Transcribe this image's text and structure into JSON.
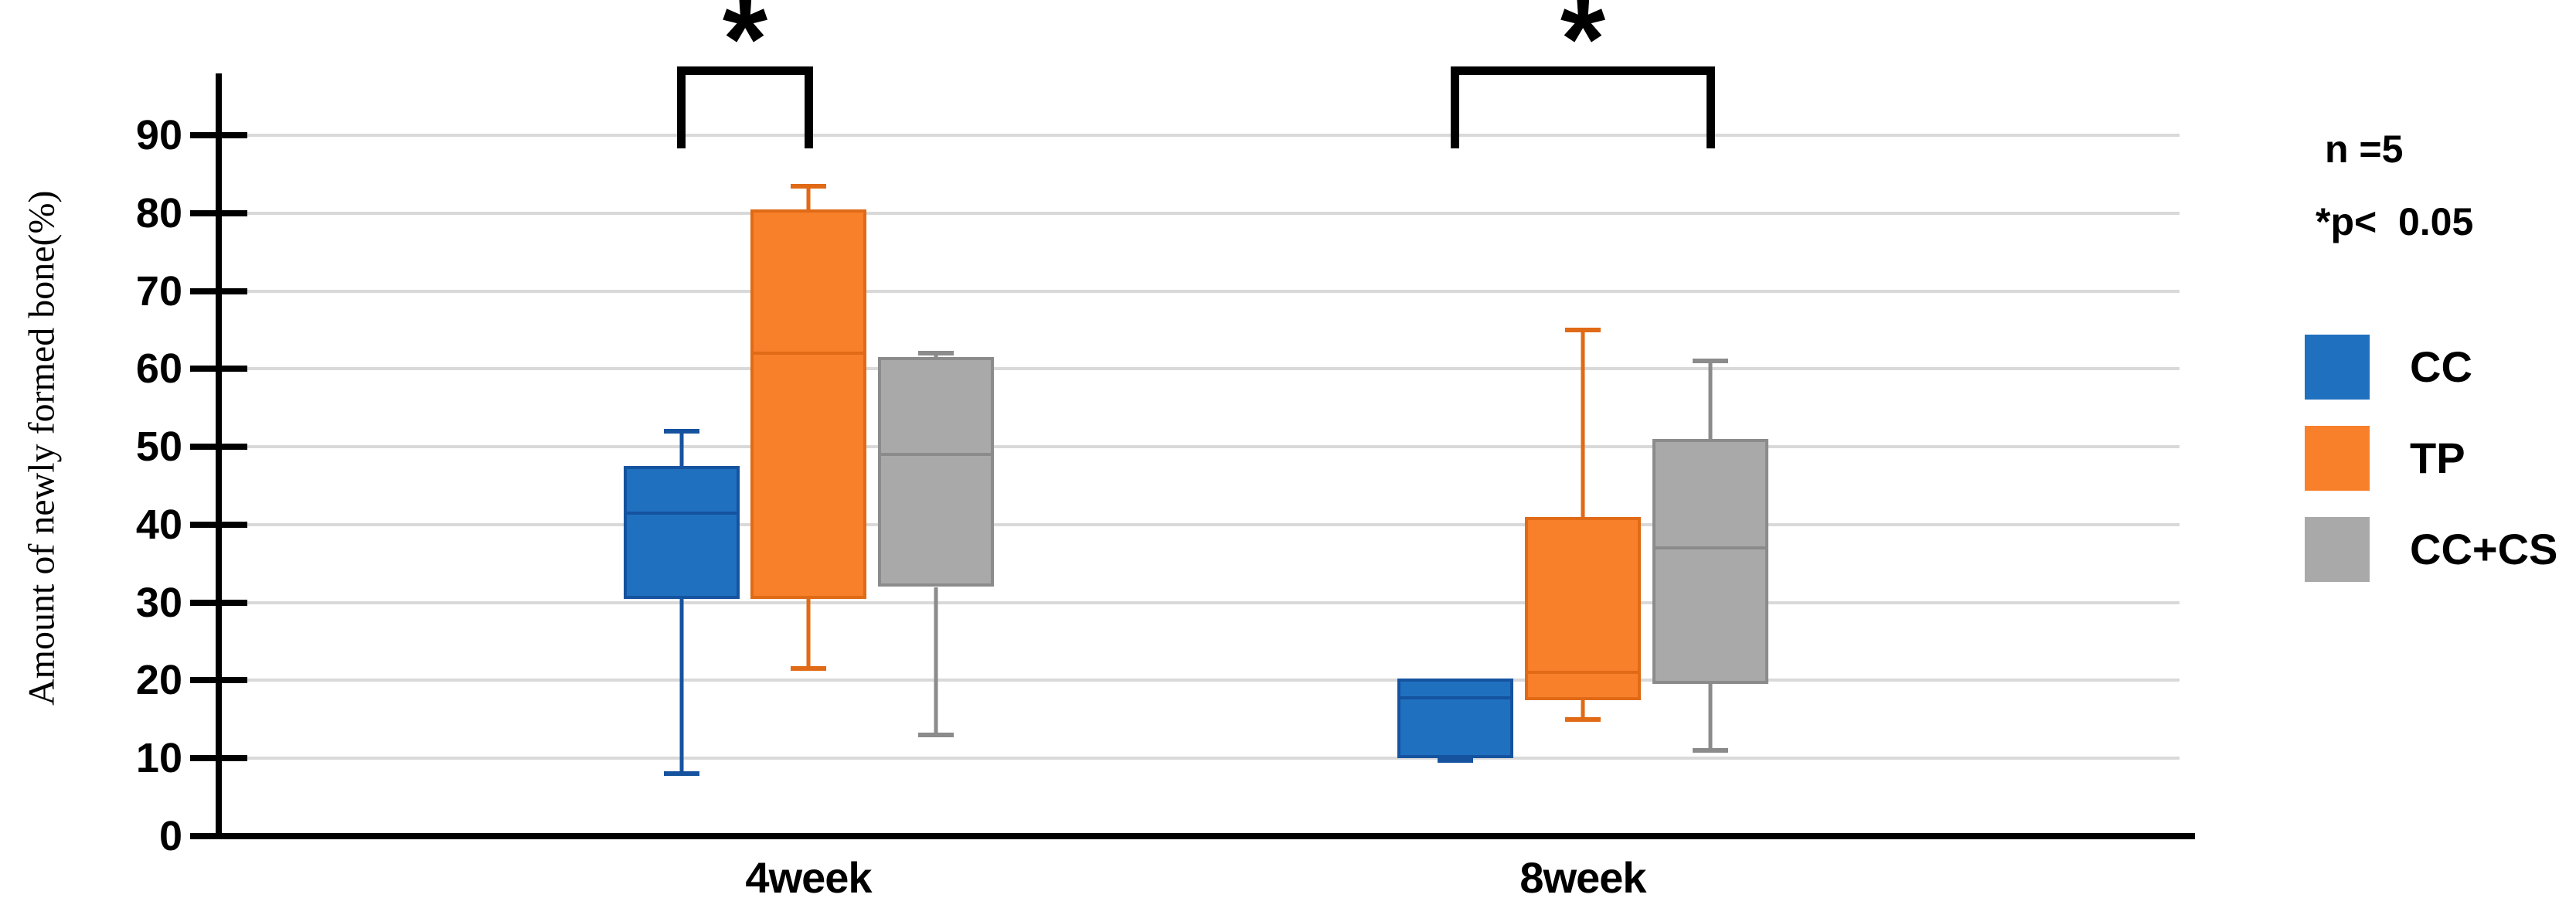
{
  "chart_data": {
    "type": "boxplot",
    "title": "",
    "ylabel": "Amount of newly formed bone(%)",
    "xlabel": "",
    "ylim": [
      0,
      98
    ],
    "grid": true,
    "y_ticks": [
      0,
      10,
      20,
      30,
      40,
      50,
      60,
      70,
      80,
      90
    ],
    "categories": [
      "4week",
      "8week"
    ],
    "series": [
      {
        "name": "CC",
        "fill": "#2070C0",
        "stroke": "#15539F",
        "data": {
          "4week": {
            "min": 8,
            "q1": 30.5,
            "median": 41.5,
            "q3": 47.5,
            "max": 52
          },
          "8week": {
            "min": 9.7,
            "q1": 10,
            "median": 17.8,
            "q3": 20.2,
            "max": 20.2
          }
        }
      },
      {
        "name": "TP",
        "fill": "#F8802B",
        "stroke": "#E06A16",
        "data": {
          "4week": {
            "min": 21.5,
            "q1": 30.5,
            "median": 62,
            "q3": 80.5,
            "max": 83.5
          },
          "8week": {
            "min": 15,
            "q1": 17.5,
            "median": 21,
            "q3": 41,
            "max": 65
          }
        }
      },
      {
        "name": "CC+CS",
        "fill": "#A9A9A9",
        "stroke": "#8B8B8B",
        "data": {
          "4week": {
            "min": 13,
            "q1": 32,
            "median": 49,
            "q3": 61.5,
            "max": 62
          },
          "8week": {
            "min": 11,
            "q1": 19.5,
            "median": 37,
            "q3": 51,
            "max": 61
          }
        }
      }
    ],
    "significance": [
      {
        "category": "4week",
        "from": "CC",
        "to": "TP",
        "label": "*"
      },
      {
        "category": "8week",
        "from": "CC",
        "to": "CC+CS",
        "label": "*"
      }
    ],
    "annotations": {
      "n": "n =5",
      "p": "*p<  0.05"
    },
    "legend_position": "right",
    "colors": {
      "gridline": "#D9D9D9",
      "axis": "#000000"
    }
  }
}
